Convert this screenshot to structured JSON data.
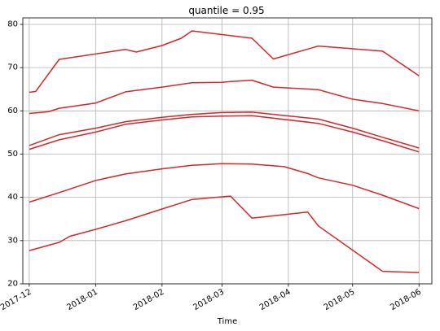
{
  "chart_data": {
    "type": "line",
    "title": "quantile = 0.95",
    "xlabel": "Time",
    "ylabel": "",
    "x_type": "date",
    "xlim": [
      "2017-11-28",
      "2018-06-07"
    ],
    "ylim": [
      20,
      81.5
    ],
    "x_ticks": [
      "2017-12-01",
      "2018-01-01",
      "2018-02-01",
      "2018-03-01",
      "2018-04-01",
      "2018-05-01",
      "2018-06-01"
    ],
    "x_tick_labels": [
      "2017-12",
      "2018-01",
      "2018-02",
      "2018-03",
      "2018-04",
      "2018-05",
      "2018-06"
    ],
    "y_ticks": [
      20,
      30,
      40,
      50,
      60,
      70,
      80
    ],
    "y_tick_labels": [
      "20",
      "30",
      "40",
      "50",
      "60",
      "70",
      "80"
    ],
    "grid": true,
    "line_color": "#d62728",
    "series": [
      {
        "x": [
          "2017-12-01",
          "2017-12-04",
          "2017-12-15",
          "2018-01-15",
          "2018-01-20",
          "2018-02-01",
          "2018-02-10",
          "2018-02-15",
          "2018-03-15",
          "2018-03-25",
          "2018-04-15",
          "2018-05-15",
          "2018-06-01"
        ],
        "y": [
          64.3,
          64.5,
          71.9,
          74.2,
          73.6,
          75.1,
          76.8,
          78.5,
          76.8,
          72.0,
          75.0,
          73.8,
          68.1
        ]
      },
      {
        "x": [
          "2017-12-01",
          "2017-12-10",
          "2017-12-15",
          "2018-01-01",
          "2018-01-15",
          "2018-02-01",
          "2018-02-15",
          "2018-03-01",
          "2018-03-05",
          "2018-03-15",
          "2018-03-25",
          "2018-04-15",
          "2018-05-01",
          "2018-05-15",
          "2018-06-01"
        ],
        "y": [
          59.4,
          59.8,
          60.6,
          61.8,
          64.4,
          65.5,
          66.5,
          66.6,
          66.8,
          67.1,
          65.5,
          64.9,
          62.7,
          61.7,
          60.0
        ]
      },
      {
        "x": [
          "2017-12-01",
          "2017-12-15",
          "2018-01-01",
          "2018-01-15",
          "2018-02-01",
          "2018-02-15",
          "2018-03-01",
          "2018-03-15",
          "2018-04-15",
          "2018-05-01",
          "2018-05-15",
          "2018-06-01"
        ],
        "y": [
          52.0,
          54.5,
          56.0,
          57.5,
          58.5,
          59.2,
          59.6,
          59.7,
          58.1,
          56.0,
          53.9,
          51.4
        ]
      },
      {
        "x": [
          "2017-12-01",
          "2017-12-15",
          "2018-01-01",
          "2018-01-15",
          "2018-02-01",
          "2018-02-15",
          "2018-03-01",
          "2018-03-15",
          "2018-04-15",
          "2018-05-01",
          "2018-05-15",
          "2018-06-01"
        ],
        "y": [
          51.1,
          53.3,
          55.1,
          56.9,
          57.9,
          58.6,
          58.8,
          58.9,
          57.1,
          55.1,
          53.1,
          50.5
        ]
      },
      {
        "x": [
          "2017-12-01",
          "2017-12-15",
          "2018-01-01",
          "2018-01-15",
          "2018-02-01",
          "2018-02-15",
          "2018-03-01",
          "2018-03-15",
          "2018-03-30",
          "2018-04-10",
          "2018-04-15",
          "2018-05-01",
          "2018-05-15",
          "2018-06-01"
        ],
        "y": [
          38.9,
          41.1,
          43.9,
          45.4,
          46.6,
          47.4,
          47.8,
          47.7,
          47.1,
          45.5,
          44.5,
          42.8,
          40.5,
          37.4
        ]
      },
      {
        "x": [
          "2017-12-01",
          "2017-12-15",
          "2017-12-20",
          "2018-01-01",
          "2018-01-15",
          "2018-02-01",
          "2018-02-15",
          "2018-03-05",
          "2018-03-15",
          "2018-04-10",
          "2018-04-15",
          "2018-05-15",
          "2018-06-01"
        ],
        "y": [
          27.7,
          29.6,
          31.0,
          32.6,
          34.6,
          37.3,
          39.5,
          40.3,
          35.2,
          36.6,
          33.4,
          22.9,
          22.6
        ]
      }
    ]
  }
}
